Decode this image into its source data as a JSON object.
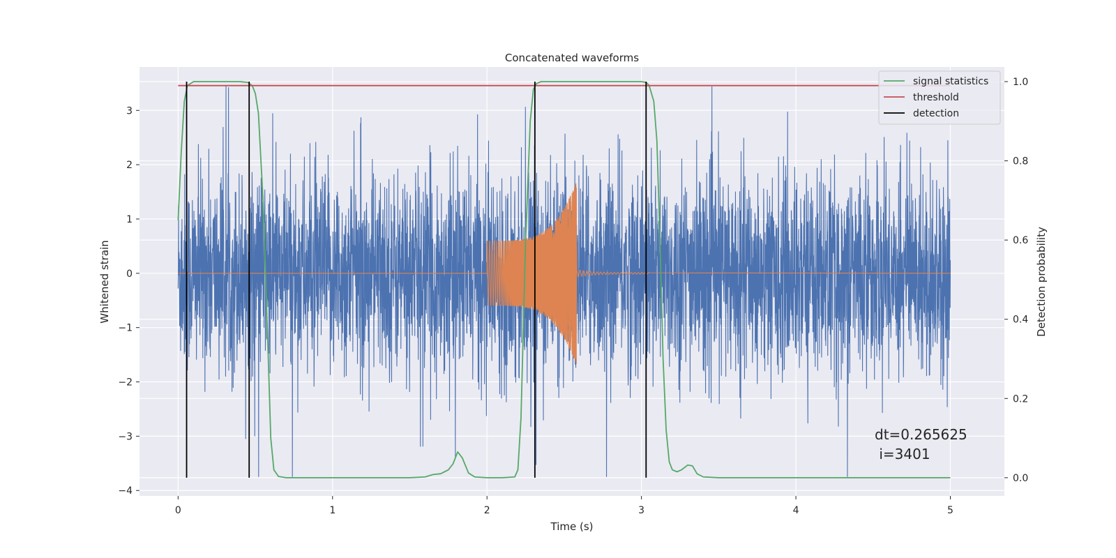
{
  "chart_data": {
    "type": "line",
    "title": "Concatenated waveforms",
    "xlabel": "Time (s)",
    "ylabel": "Whitened strain",
    "ylabel_right": "Detection probability",
    "xlim": [
      -0.25,
      5.35
    ],
    "ylim": [
      -4.1,
      3.8
    ],
    "ylim_right": [
      -0.046,
      1.037
    ],
    "x_ticks": [
      "0",
      "1",
      "2",
      "3",
      "4",
      "5"
    ],
    "x_tick_values": [
      0,
      1,
      2,
      3,
      4,
      5
    ],
    "y_ticks": [
      "−4",
      "−3",
      "−2",
      "−1",
      "0",
      "1",
      "2",
      "3"
    ],
    "y_tick_values": [
      -4,
      -3,
      -2,
      -1,
      0,
      1,
      2,
      3
    ],
    "y2_ticks": [
      "0.0",
      "0.2",
      "0.4",
      "0.6",
      "0.8",
      "1.0"
    ],
    "y2_tick_values": [
      0.0,
      0.2,
      0.4,
      0.6,
      0.8,
      1.0
    ],
    "grid": true,
    "legend_position": "top-right",
    "series": [
      {
        "name": "",
        "color": "#4c72b0",
        "axis": "left",
        "description_values": "whitened noise strain, 0 to 5 s",
        "x_range": [
          0,
          5
        ],
        "envelope": 2.6
      },
      {
        "name": "",
        "color": "#dd8452",
        "axis": "left",
        "x_range": [
          2.0,
          2.6
        ],
        "start_amplitude": 0.6,
        "peak_amplitude": 1.7,
        "peak_time": 2.58
      },
      {
        "name": "signal statistics",
        "color": "#55a868",
        "axis": "right",
        "x": [
          0,
          0.02,
          0.04,
          0.06,
          0.1,
          0.2,
          0.3,
          0.4,
          0.45,
          0.48,
          0.5,
          0.52,
          0.55,
          0.58,
          0.6,
          0.62,
          0.65,
          0.7,
          1.0,
          1.5,
          1.6,
          1.65,
          1.7,
          1.75,
          1.78,
          1.81,
          1.84,
          1.88,
          1.92,
          2.0,
          2.1,
          2.18,
          2.2,
          2.22,
          2.25,
          2.28,
          2.3,
          2.32,
          2.35,
          2.4,
          2.6,
          3.0,
          3.03,
          3.05,
          3.08,
          3.1,
          3.12,
          3.14,
          3.16,
          3.18,
          3.2,
          3.23,
          3.26,
          3.3,
          3.33,
          3.36,
          3.4,
          3.5,
          4.0,
          4.5,
          5.0
        ],
        "y": [
          0.65,
          0.82,
          0.95,
          0.99,
          1.0,
          1.0,
          1.0,
          1.0,
          0.998,
          0.99,
          0.97,
          0.92,
          0.7,
          0.35,
          0.1,
          0.02,
          0.003,
          0.0,
          0.0,
          0.0,
          0.002,
          0.008,
          0.01,
          0.02,
          0.035,
          0.065,
          0.05,
          0.012,
          0.002,
          0.0,
          0.0,
          0.002,
          0.02,
          0.15,
          0.6,
          0.9,
          0.98,
          0.995,
          1.0,
          1.0,
          1.0,
          1.0,
          0.998,
          0.99,
          0.95,
          0.85,
          0.6,
          0.3,
          0.12,
          0.04,
          0.02,
          0.015,
          0.02,
          0.032,
          0.03,
          0.01,
          0.002,
          0.0,
          0.0,
          0.0,
          0.0
        ]
      },
      {
        "name": "threshold",
        "color": "#c44e52",
        "axis": "right",
        "x": [
          0,
          5
        ],
        "y": [
          0.99,
          0.99
        ]
      },
      {
        "name": "detection",
        "color": "#000000",
        "axis": "right",
        "x_lines": [
          0.055,
          0.46,
          2.31,
          3.03
        ],
        "y_range": [
          0.0,
          1.0
        ]
      }
    ],
    "annotation": {
      "line1": "dt=0.265625",
      "line2": " i=3401",
      "x": 4.5,
      "y": -3.3
    }
  }
}
